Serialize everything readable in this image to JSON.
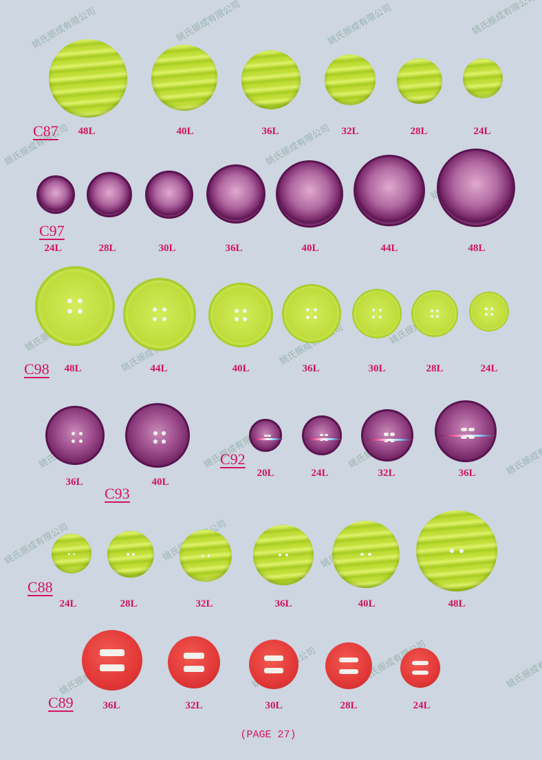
{
  "watermark_text": "姚氏振成有限公司",
  "page_label": "(PAGE 27)",
  "colors": {
    "label": "#d4145a",
    "lime": "#c3e03a",
    "purple": "#6a1d5a",
    "red": "#e23838",
    "background": "#cdd6e1"
  },
  "groups": [
    {
      "code": "C87",
      "color": "lime",
      "style": "wavy, no holes",
      "items": [
        "48L",
        "40L",
        "36L",
        "32L",
        "28L",
        "24L"
      ]
    },
    {
      "code": "C97",
      "color": "purple",
      "style": "rimmed cup, no holes",
      "items": [
        "24L",
        "28L",
        "30L",
        "36L",
        "40L",
        "44L",
        "48L"
      ]
    },
    {
      "code": "C98",
      "color": "lime",
      "style": "4-hole rimmed",
      "items": [
        "48L",
        "44L",
        "40L",
        "36L",
        "30L",
        "28L",
        "24L"
      ]
    },
    {
      "code": "C93",
      "color": "purple",
      "style": "4-hole rimmed",
      "items": [
        "36L",
        "40L"
      ]
    },
    {
      "code": "C92",
      "color": "purple",
      "style": "2-slot iridescent",
      "items": [
        "20L",
        "24L",
        "32L",
        "36L"
      ]
    },
    {
      "code": "C88",
      "color": "lime",
      "style": "wavy, 2-hole",
      "items": [
        "24L",
        "28L",
        "32L",
        "36L",
        "40L",
        "48L"
      ]
    },
    {
      "code": "C89",
      "color": "red",
      "style": "2-slot",
      "items": [
        "36L",
        "32L",
        "30L",
        "28L",
        "24L"
      ]
    }
  ]
}
